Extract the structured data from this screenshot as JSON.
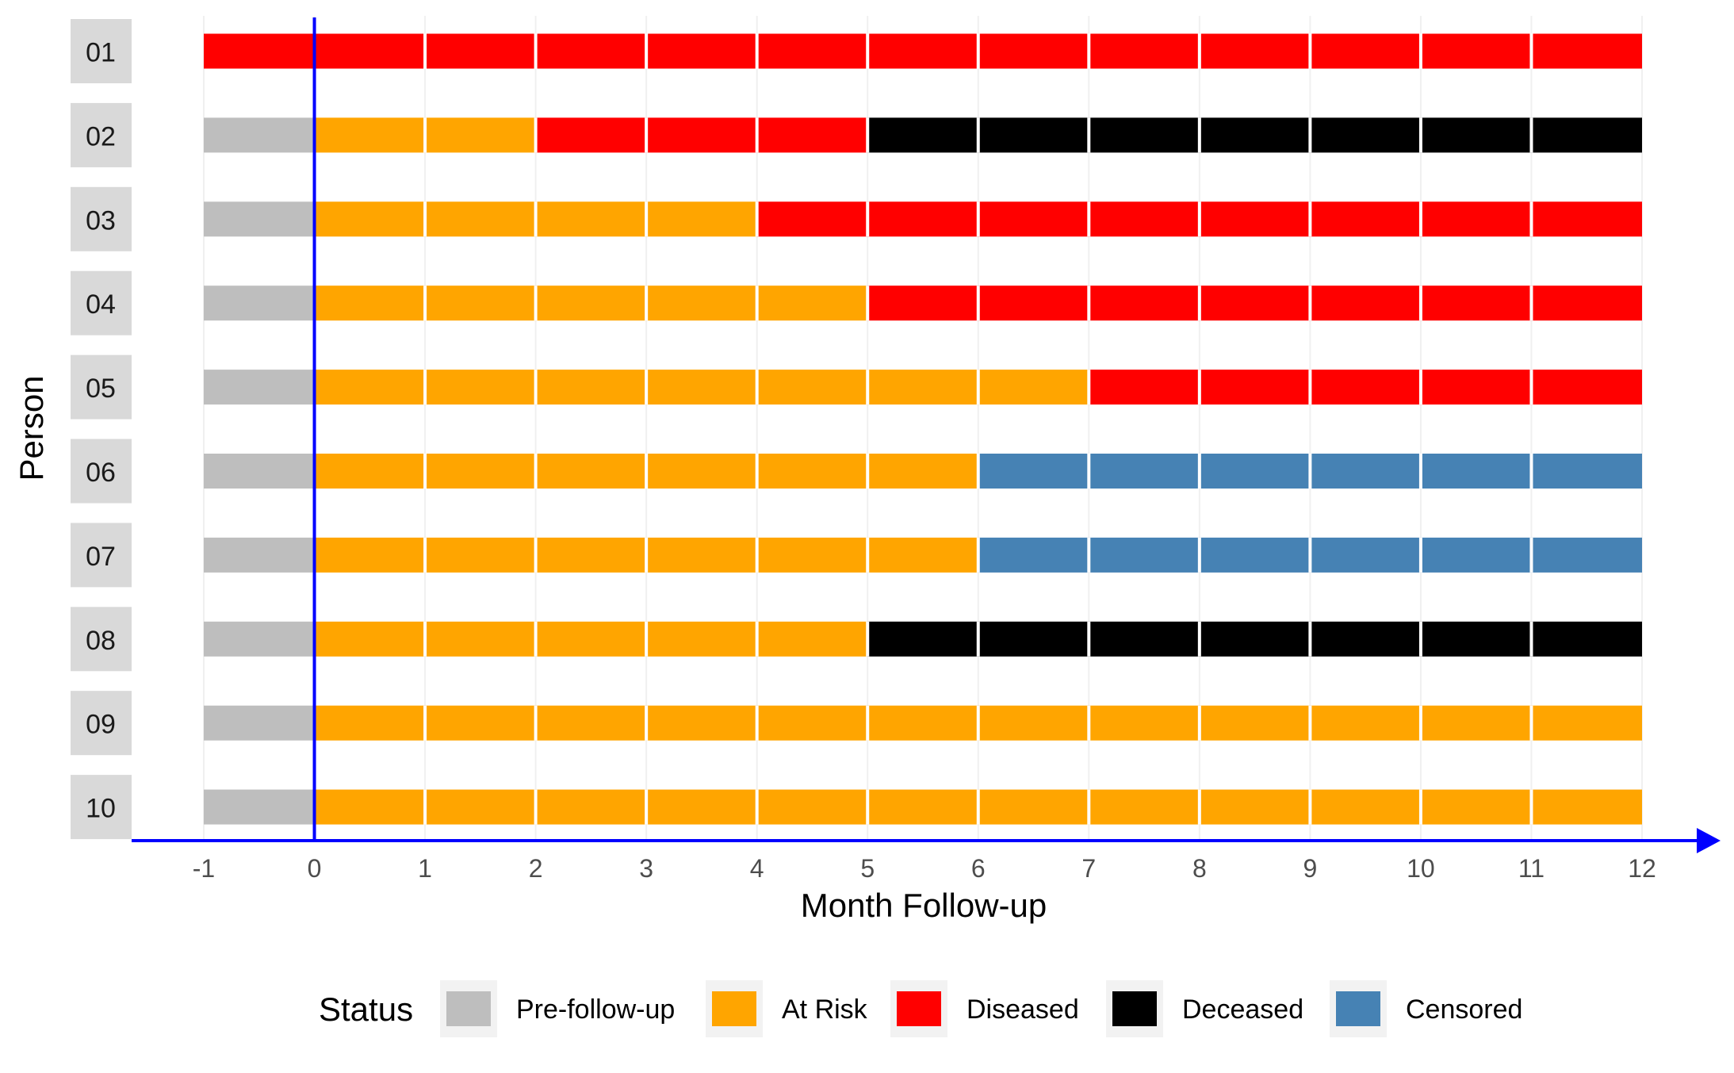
{
  "chart_data": {
    "type": "bar",
    "subtype": "swimmer-timeline",
    "title": "",
    "xlabel": "Month Follow-up",
    "ylabel": "Person",
    "xlim": [
      -1,
      12
    ],
    "x_ticks": [
      "-1",
      "0",
      "1",
      "2",
      "3",
      "4",
      "5",
      "6",
      "7",
      "8",
      "9",
      "10",
      "11",
      "12"
    ],
    "reference_line_x": 0,
    "grid": false,
    "legend_position": "bottom",
    "legend": {
      "title": "Status",
      "entries": [
        {
          "key": "pre",
          "label": "Pre-follow-up",
          "color": "#bebebe"
        },
        {
          "key": "risk",
          "label": "At Risk",
          "color": "#ffa500"
        },
        {
          "key": "diseased",
          "label": "Diseased",
          "color": "#ff0000"
        },
        {
          "key": "deceased",
          "label": "Deceased",
          "color": "#000000"
        },
        {
          "key": "censored",
          "label": "Censored",
          "color": "#4682b4"
        }
      ]
    },
    "persons": [
      {
        "id": "01",
        "segments": [
          {
            "status": "diseased",
            "start": -1,
            "end": 12
          }
        ]
      },
      {
        "id": "02",
        "segments": [
          {
            "status": "pre",
            "start": -1,
            "end": 0
          },
          {
            "status": "risk",
            "start": 0,
            "end": 2
          },
          {
            "status": "diseased",
            "start": 2,
            "end": 5
          },
          {
            "status": "deceased",
            "start": 5,
            "end": 12
          }
        ]
      },
      {
        "id": "03",
        "segments": [
          {
            "status": "pre",
            "start": -1,
            "end": 0
          },
          {
            "status": "risk",
            "start": 0,
            "end": 4
          },
          {
            "status": "diseased",
            "start": 4,
            "end": 12
          }
        ]
      },
      {
        "id": "04",
        "segments": [
          {
            "status": "pre",
            "start": -1,
            "end": 0
          },
          {
            "status": "risk",
            "start": 0,
            "end": 5
          },
          {
            "status": "diseased",
            "start": 5,
            "end": 12
          }
        ]
      },
      {
        "id": "05",
        "segments": [
          {
            "status": "pre",
            "start": -1,
            "end": 0
          },
          {
            "status": "risk",
            "start": 0,
            "end": 7
          },
          {
            "status": "diseased",
            "start": 7,
            "end": 12
          }
        ]
      },
      {
        "id": "06",
        "segments": [
          {
            "status": "pre",
            "start": -1,
            "end": 0
          },
          {
            "status": "risk",
            "start": 0,
            "end": 6
          },
          {
            "status": "censored",
            "start": 6,
            "end": 12
          }
        ]
      },
      {
        "id": "07",
        "segments": [
          {
            "status": "pre",
            "start": -1,
            "end": 0
          },
          {
            "status": "risk",
            "start": 0,
            "end": 6
          },
          {
            "status": "censored",
            "start": 6,
            "end": 12
          }
        ]
      },
      {
        "id": "08",
        "segments": [
          {
            "status": "pre",
            "start": -1,
            "end": 0
          },
          {
            "status": "risk",
            "start": 0,
            "end": 5
          },
          {
            "status": "deceased",
            "start": 5,
            "end": 12
          }
        ]
      },
      {
        "id": "09",
        "segments": [
          {
            "status": "pre",
            "start": -1,
            "end": 0
          },
          {
            "status": "risk",
            "start": 0,
            "end": 12
          }
        ]
      },
      {
        "id": "10",
        "segments": [
          {
            "status": "pre",
            "start": -1,
            "end": 0
          },
          {
            "status": "risk",
            "start": 0,
            "end": 12
          }
        ]
      }
    ],
    "colors": {
      "axis_arrow": "#0000ff",
      "reference_line": "#0000ff",
      "strip_background": "#d9d9d9",
      "month_divider": "#ffffff"
    }
  }
}
